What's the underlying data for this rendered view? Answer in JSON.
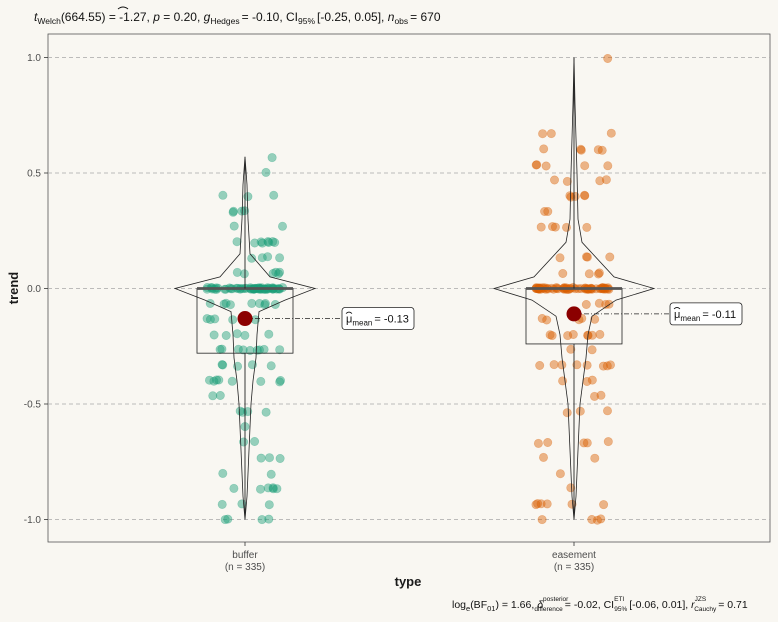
{
  "title": {
    "t_sub": "Welch",
    "t_val": "(664.55) = -1.27,",
    "p_label": "p",
    "p_val": "= 0.20,",
    "g_label": "g",
    "g_sub": "Hedges",
    "g_val": "= -0.10, CI",
    "ci_sub": "95%",
    "ci_val": "[-0.25, 0.05],",
    "n_label": "n",
    "n_sub": "obs",
    "n_val": "= 670"
  },
  "caption": {
    "log": "log",
    "log_sub": "e",
    "bf": "(BF",
    "bf_sub": "01",
    "bf_val": ") = 1.66,",
    "delta_sup": "posterior",
    "delta_sub": "difference",
    "delta_val": "= -0.02, CI",
    "ci_sup": "ETI",
    "ci_sub": "95%",
    "ci_val": "[-0.06, 0.01],",
    "r_label": "r",
    "r_sup": "JZS",
    "r_sub": "Cauchy",
    "r_val": "= 0.71"
  },
  "colors": {
    "buffer": "#1b9e77",
    "easement": "#d95f02",
    "mean_point": "#8b0000",
    "background": "#f9f7f2",
    "grid": "#a8a8a8"
  },
  "chart_data": {
    "type": "violin-box-scatter",
    "xlabel": "type",
    "ylabel": "trend",
    "ylim": [
      -1.05,
      1.1
    ],
    "yticks": [
      -1.0,
      -0.5,
      0.0,
      0.5,
      1.0
    ],
    "ytick_labels": [
      "-1.0",
      "-0.5",
      "0.0",
      "0.5",
      "1.0"
    ],
    "grid": "horizontal dashed",
    "groups": [
      {
        "name": "buffer",
        "n_label": "(n = 335)",
        "n": 335,
        "mean": -0.13,
        "mean_label_main": "= -0.13",
        "q1": -0.28,
        "median": 0.0,
        "q3": 0.0,
        "min": -1.0,
        "max": 0.57
      },
      {
        "name": "easement",
        "n_label": "(n = 335)",
        "n": 335,
        "mean": -0.11,
        "mean_label_main": "= -0.11",
        "q1": -0.24,
        "median": 0.0,
        "q3": 0.0,
        "min": -1.0,
        "max": 1.0
      }
    ],
    "mean_label_hat": "μ",
    "mean_label_sub": "mean"
  }
}
